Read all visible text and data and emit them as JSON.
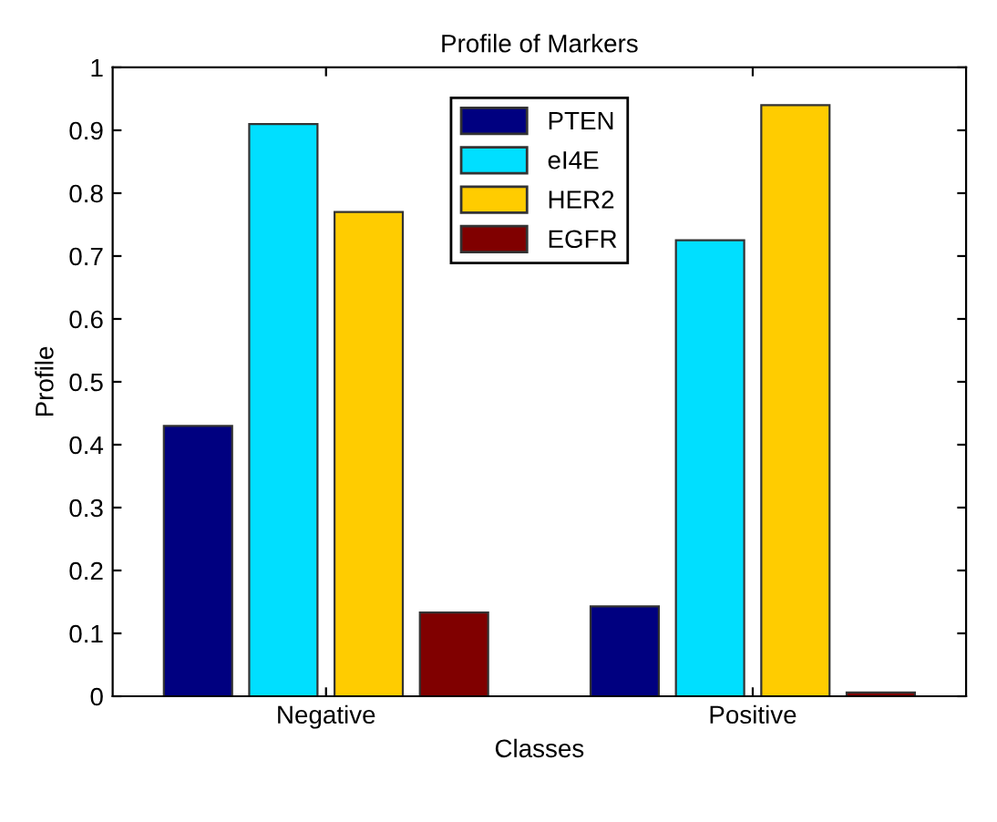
{
  "chart_data": {
    "type": "bar",
    "title": "Profile of Markers",
    "xlabel": "Classes",
    "ylabel": "Profile",
    "categories": [
      "Negative",
      "Positive"
    ],
    "series": [
      {
        "name": "PTEN",
        "color": "#000080",
        "values": [
          0.43,
          0.143
        ]
      },
      {
        "name": "eI4E",
        "color": "#00dfff",
        "values": [
          0.91,
          0.725
        ]
      },
      {
        "name": "HER2",
        "color": "#ffcc00",
        "values": [
          0.77,
          0.94
        ]
      },
      {
        "name": "EGFR",
        "color": "#800000",
        "values": [
          0.133,
          0.006
        ]
      }
    ],
    "ylim": [
      0,
      1
    ],
    "yticks": [
      0,
      0.1,
      0.2,
      0.3,
      0.4,
      0.5,
      0.6,
      0.7,
      0.8,
      0.9,
      1
    ],
    "legend": "top",
    "grid": false
  }
}
